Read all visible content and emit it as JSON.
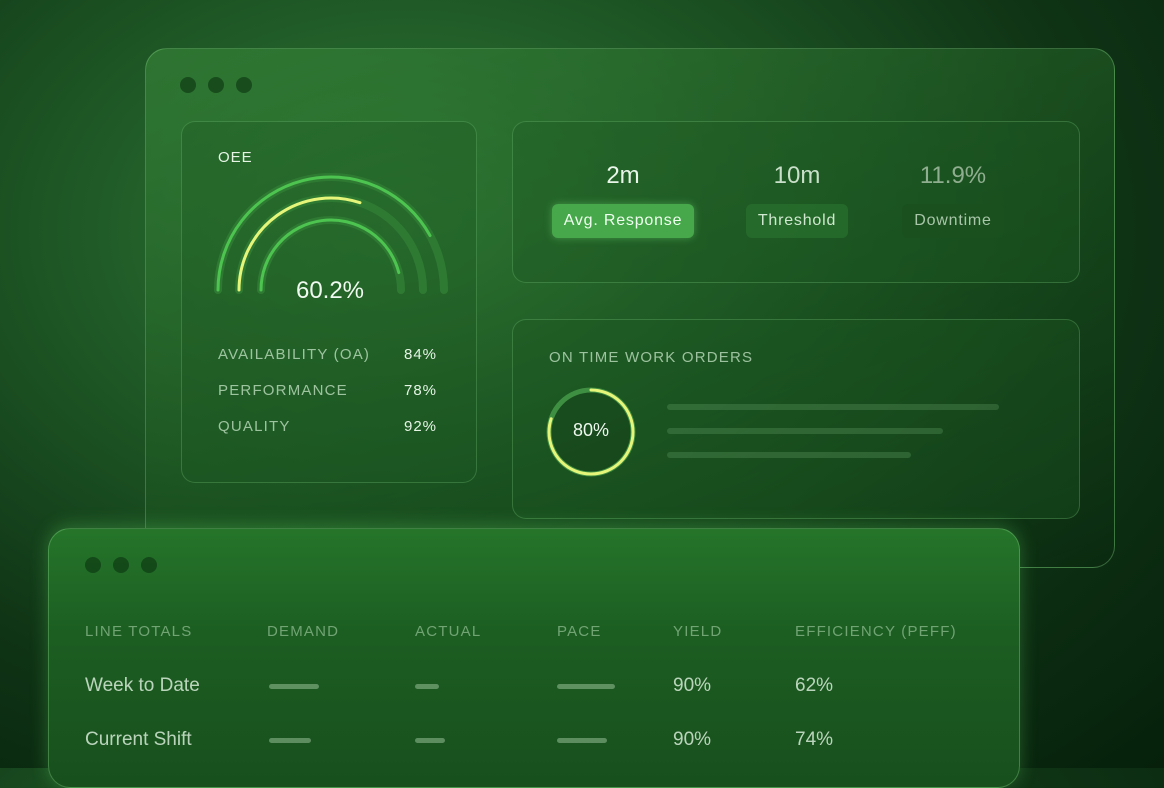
{
  "oee": {
    "title": "OEE",
    "value": "60.2%",
    "gauges": {
      "outer": 0.84,
      "middle": 0.602,
      "inner": 0.92
    },
    "metrics": [
      {
        "label": "AVAILABILITY (OA)",
        "value": "84%"
      },
      {
        "label": "PERFORMANCE",
        "value": "78%"
      },
      {
        "label": "QUALITY",
        "value": "92%"
      }
    ]
  },
  "stats": [
    {
      "value": "2m",
      "label": "Avg. Response"
    },
    {
      "value": "10m",
      "label": "Threshold"
    },
    {
      "value": "11.9%",
      "label": "Downtime"
    }
  ],
  "work_orders": {
    "title": "ON TIME WORK ORDERS",
    "value": "80%",
    "progress": 0.8
  },
  "line_totals": {
    "headers": [
      "LINE TOTALS",
      "DEMAND",
      "ACTUAL",
      "PACE",
      "YIELD",
      "EFFICIENCY (PEFF)"
    ],
    "rows": [
      {
        "name": "Week to Date",
        "yield": "90%",
        "efficiency": "62%"
      },
      {
        "name": "Current Shift",
        "yield": "90%",
        "efficiency": "74%"
      }
    ]
  },
  "colors": {
    "accent": "#4cc44f",
    "highlight": "#e4f57a"
  }
}
